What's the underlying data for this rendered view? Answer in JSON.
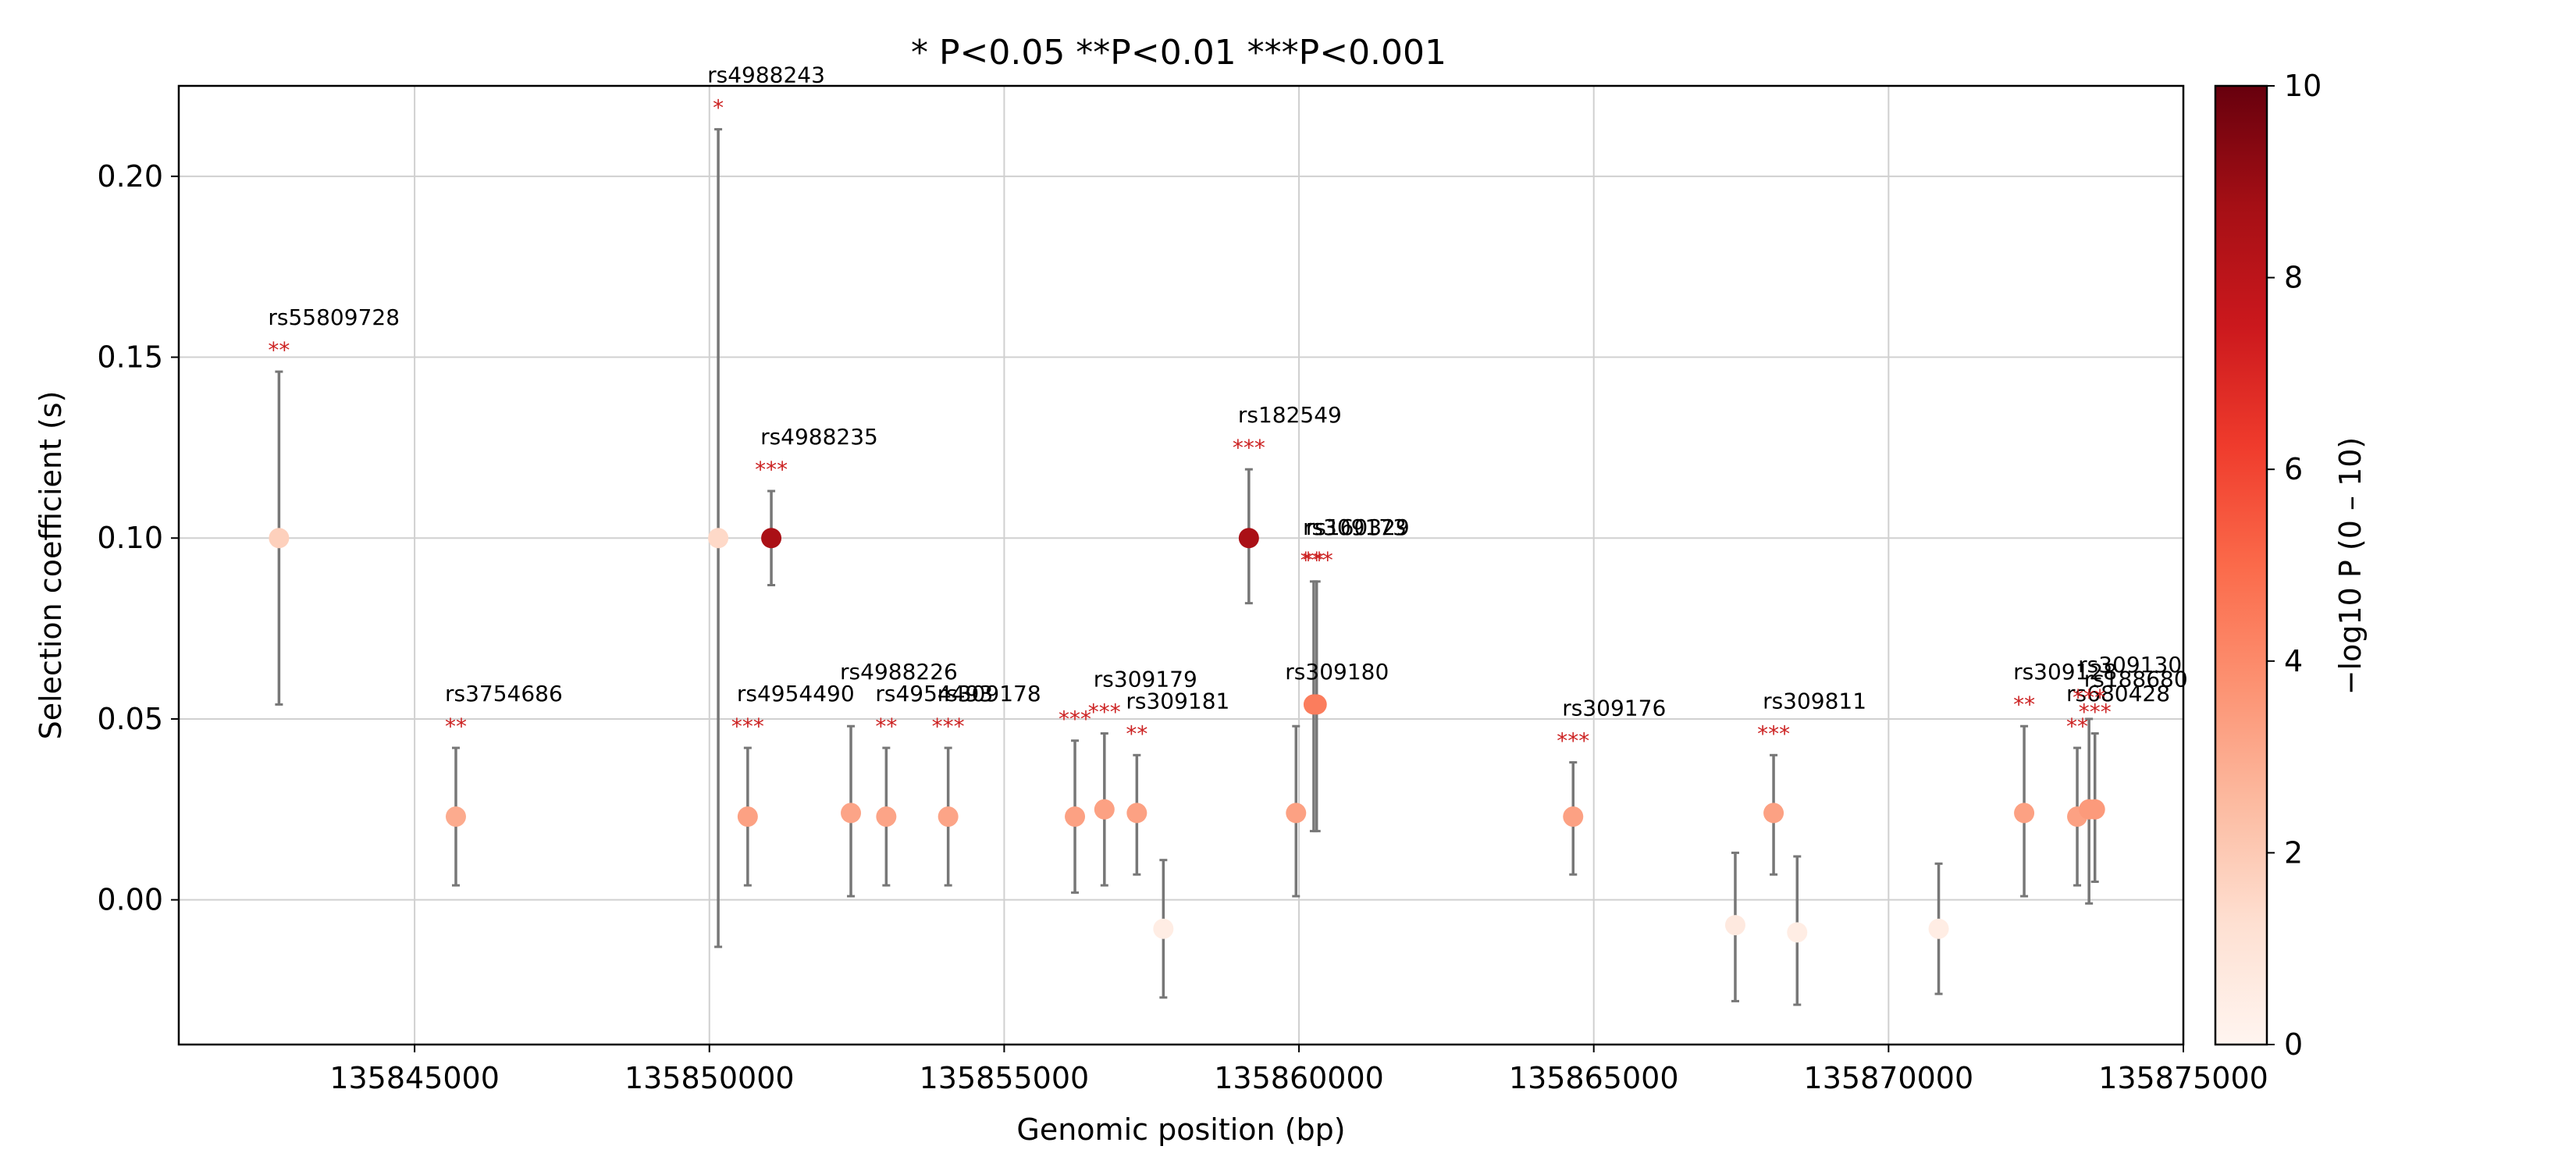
{
  "chart_data": {
    "type": "scatter",
    "title": "* P<0.05   **P<0.01   ***P<0.001",
    "xlabel": "Genomic position (bp)",
    "ylabel": "Selection coefficient (s)",
    "xlim": [
      135841000,
      135875000
    ],
    "ylim": [
      -0.04,
      0.225
    ],
    "x_ticks": [
      135845000,
      135850000,
      135855000,
      135860000,
      135865000,
      135870000,
      135875000
    ],
    "x_tick_labels": [
      "135845000",
      "135850000",
      "135855000",
      "135860000",
      "135865000",
      "135870000",
      "135875000"
    ],
    "y_ticks": [
      0.0,
      0.05,
      0.1,
      0.15,
      0.2
    ],
    "y_tick_labels": [
      "0.00",
      "0.05",
      "0.10",
      "0.15",
      "0.20"
    ],
    "grid": true,
    "colorbar": {
      "label": "−log10 P  (0 – 10)",
      "min": 0,
      "max": 10,
      "ticks": [
        0,
        2,
        4,
        6,
        8,
        10
      ],
      "tick_labels": [
        "0",
        "2",
        "4",
        "6",
        "8",
        "10"
      ],
      "colormap": "Reds"
    },
    "colors": {
      "errorbar": "#777777",
      "star": "#cc2222",
      "grid": "#d0d0d0"
    },
    "points": [
      {
        "x": 135842700,
        "y": 0.1,
        "lo": 0.054,
        "hi": 0.146,
        "nlp": 1.8,
        "snp": "rs55809728",
        "stars": "**"
      },
      {
        "x": 135845700,
        "y": 0.023,
        "lo": 0.004,
        "hi": 0.042,
        "nlp": 3.0,
        "snp": "rs3754686",
        "stars": "**"
      },
      {
        "x": 135850150,
        "y": 0.1,
        "lo": -0.013,
        "hi": 0.213,
        "nlp": 1.5,
        "snp": "rs4988243",
        "stars": "*"
      },
      {
        "x": 135850650,
        "y": 0.023,
        "lo": 0.004,
        "hi": 0.042,
        "nlp": 3.3,
        "snp": "rs4954490",
        "stars": "***"
      },
      {
        "x": 135851050,
        "y": 0.1,
        "lo": 0.087,
        "hi": 0.113,
        "nlp": 8.6,
        "snp": "rs4988235",
        "stars": "***"
      },
      {
        "x": 135852400,
        "y": 0.024,
        "lo": 0.001,
        "hi": 0.048,
        "nlp": 3.2,
        "snp": "rs4988226",
        "stars": ""
      },
      {
        "x": 135853000,
        "y": 0.023,
        "lo": 0.004,
        "hi": 0.042,
        "nlp": 3.2,
        "snp": "rs4954493",
        "stars": "**"
      },
      {
        "x": 135854050,
        "y": 0.023,
        "lo": 0.004,
        "hi": 0.042,
        "nlp": 3.2,
        "snp": "rs309178",
        "stars": "***"
      },
      {
        "x": 135856200,
        "y": 0.023,
        "lo": 0.002,
        "hi": 0.044,
        "nlp": 3.3,
        "snp": "",
        "stars": "***"
      },
      {
        "x": 135856700,
        "y": 0.025,
        "lo": 0.004,
        "hi": 0.046,
        "nlp": 3.3,
        "snp": "rs309179",
        "stars": "***"
      },
      {
        "x": 135857250,
        "y": 0.024,
        "lo": 0.007,
        "hi": 0.04,
        "nlp": 3.3,
        "snp": "rs309181",
        "stars": "**"
      },
      {
        "x": 135857700,
        "y": -0.008,
        "lo": -0.027,
        "hi": 0.011,
        "nlp": 0.5,
        "snp": "",
        "stars": ""
      },
      {
        "x": 135859950,
        "y": 0.024,
        "lo": 0.001,
        "hi": 0.048,
        "nlp": 3.3,
        "snp": "rs309180",
        "stars": ""
      },
      {
        "x": 135860250,
        "y": 0.054,
        "lo": 0.019,
        "hi": 0.088,
        "nlp": 4.4,
        "snp": "rs309173",
        "stars": "**"
      },
      {
        "x": 135859150,
        "y": 0.1,
        "lo": 0.082,
        "hi": 0.119,
        "nlp": 8.6,
        "snp": "rs182549",
        "stars": "***"
      },
      {
        "x": 135860300,
        "y": 0.054,
        "lo": 0.019,
        "hi": 0.088,
        "nlp": 4.4,
        "snp": "rs160329",
        "stars": "***"
      },
      {
        "x": 135864650,
        "y": 0.023,
        "lo": 0.007,
        "hi": 0.038,
        "nlp": 3.3,
        "snp": "rs309176",
        "stars": "***"
      },
      {
        "x": 135867400,
        "y": -0.007,
        "lo": -0.028,
        "hi": 0.013,
        "nlp": 0.7,
        "snp": "",
        "stars": ""
      },
      {
        "x": 135868050,
        "y": 0.024,
        "lo": 0.007,
        "hi": 0.04,
        "nlp": 3.3,
        "snp": "rs309811",
        "stars": "***"
      },
      {
        "x": 135868450,
        "y": -0.009,
        "lo": -0.029,
        "hi": 0.012,
        "nlp": 0.5,
        "snp": "",
        "stars": ""
      },
      {
        "x": 135870850,
        "y": -0.008,
        "lo": -0.026,
        "hi": 0.01,
        "nlp": 0.5,
        "snp": "",
        "stars": ""
      },
      {
        "x": 135872300,
        "y": 0.024,
        "lo": 0.001,
        "hi": 0.048,
        "nlp": 3.3,
        "snp": "rs309128",
        "stars": "**"
      },
      {
        "x": 135873200,
        "y": 0.023,
        "lo": 0.004,
        "hi": 0.042,
        "nlp": 3.3,
        "snp": "rs680428",
        "stars": "**"
      },
      {
        "x": 135873400,
        "y": 0.025,
        "lo": -0.001,
        "hi": 0.05,
        "nlp": 3.5,
        "snp": "rs309130",
        "stars": "***"
      },
      {
        "x": 135873500,
        "y": 0.025,
        "lo": 0.005,
        "hi": 0.046,
        "nlp": 3.5,
        "snp": "rs188680",
        "stars": "***"
      }
    ]
  }
}
